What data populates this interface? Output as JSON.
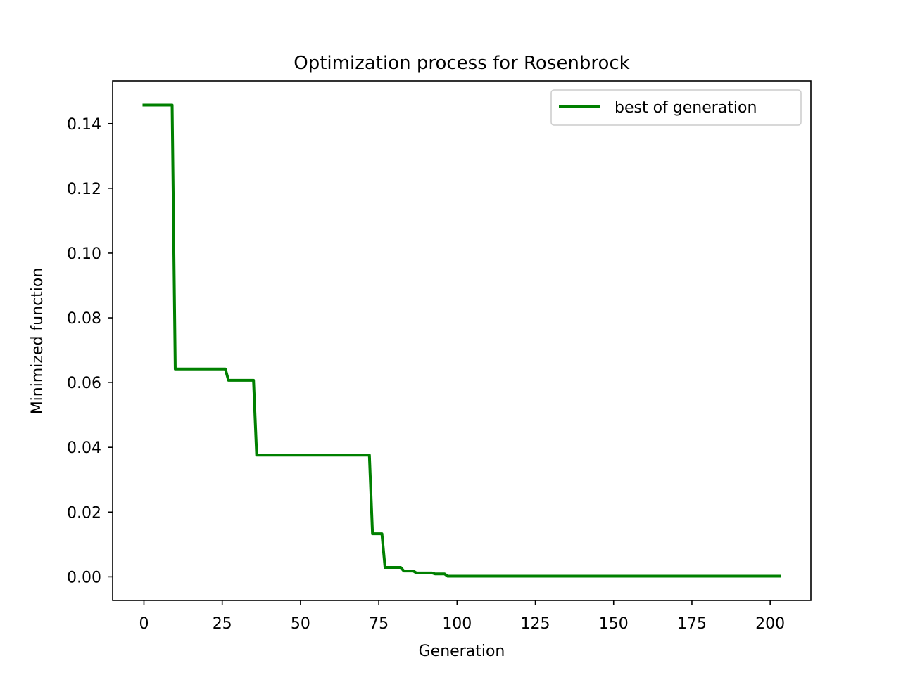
{
  "chart_data": {
    "type": "line",
    "title": "Optimization process for Rosenbrock",
    "xlabel": "Generation",
    "ylabel": "Minimized function",
    "xlim": [
      -10,
      213
    ],
    "ylim": [
      -0.0073,
      0.1532
    ],
    "xticks": [
      0,
      25,
      50,
      75,
      100,
      125,
      150,
      175,
      200
    ],
    "yticks": [
      0.0,
      0.02,
      0.04,
      0.06,
      0.08,
      0.1,
      0.12,
      0.14
    ],
    "xtick_labels": [
      "0",
      "25",
      "50",
      "75",
      "100",
      "125",
      "150",
      "175",
      "200"
    ],
    "ytick_labels": [
      "0.00",
      "0.02",
      "0.04",
      "0.06",
      "0.08",
      "0.10",
      "0.12",
      "0.14"
    ],
    "grid": false,
    "legend_position": "upper right",
    "series": [
      {
        "name": "best of generation",
        "color": "#008000",
        "x": [
          0,
          9,
          10,
          26,
          27,
          35,
          36,
          72,
          73,
          76,
          77,
          82,
          83,
          86,
          87,
          92,
          93,
          96,
          97,
          203
        ],
        "y": [
          0.1457,
          0.1457,
          0.0642,
          0.0642,
          0.0607,
          0.0607,
          0.0376,
          0.0376,
          0.0133,
          0.0133,
          0.0029,
          0.0029,
          0.0018,
          0.0018,
          0.0012,
          0.0012,
          0.0009,
          0.0009,
          0.0002,
          0.0002
        ]
      }
    ]
  }
}
